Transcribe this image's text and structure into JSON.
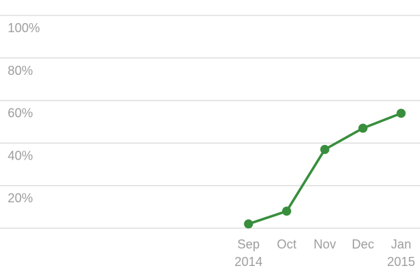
{
  "chart_data": {
    "type": "line",
    "title": "",
    "xlabel": "",
    "ylabel": "",
    "categories": [
      {
        "line1": "Sep",
        "line2": "2014"
      },
      {
        "line1": "Oct",
        "line2": ""
      },
      {
        "line1": "Nov",
        "line2": ""
      },
      {
        "line1": "Dec",
        "line2": ""
      },
      {
        "line1": "Jan",
        "line2": "2015"
      }
    ],
    "series": [
      {
        "color": "#388e3c",
        "values": [
          2,
          8,
          37,
          47,
          54
        ]
      }
    ],
    "ylim": [
      0,
      100
    ],
    "yticks": [
      {
        "value": 20,
        "label": "20%"
      },
      {
        "value": 40,
        "label": "40%"
      },
      {
        "value": 60,
        "label": "60%"
      },
      {
        "value": 80,
        "label": "80%"
      },
      {
        "value": 100,
        "label": "100%"
      }
    ],
    "grid": true,
    "legend": "none"
  }
}
